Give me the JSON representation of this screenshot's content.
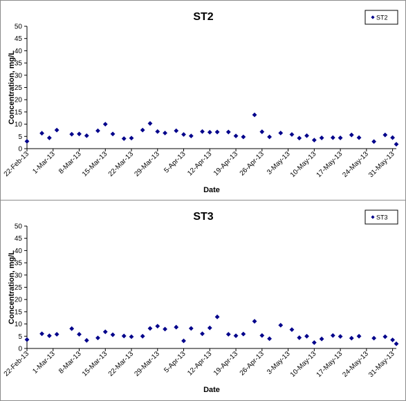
{
  "chart_data": [
    {
      "type": "scatter",
      "title": "ST2",
      "xlabel": "Date",
      "ylabel": "Concentration, mg/L",
      "ylim": [
        0,
        50
      ],
      "yticks": [
        0,
        5,
        10,
        15,
        20,
        25,
        30,
        35,
        40,
        45,
        50
      ],
      "xlim": [
        "2013-02-22",
        "2013-06-01"
      ],
      "xticks": [
        "22-Feb-13",
        "1-Mar-13",
        "8-Mar-13",
        "15-Mar-13",
        "22-Mar-13",
        "29-Mar-13",
        "5-Apr-13",
        "12-Apr-13",
        "19-Apr-13",
        "26-Apr-13",
        "3-May-13",
        "10-May-13",
        "17-May-13",
        "24-May-13",
        "31-May-13"
      ],
      "grid": false,
      "legend": "top-right",
      "marker_color": "#00008b",
      "series": [
        {
          "name": "ST2",
          "points": [
            {
              "x": "2013-02-22",
              "y": 3.0
            },
            {
              "x": "2013-02-26",
              "y": 6.3
            },
            {
              "x": "2013-02-28",
              "y": 4.4
            },
            {
              "x": "2013-03-02",
              "y": 7.6
            },
            {
              "x": "2013-03-06",
              "y": 5.9
            },
            {
              "x": "2013-03-08",
              "y": 6.0
            },
            {
              "x": "2013-03-10",
              "y": 5.3
            },
            {
              "x": "2013-03-13",
              "y": 7.3
            },
            {
              "x": "2013-03-15",
              "y": 10.0
            },
            {
              "x": "2013-03-17",
              "y": 6.0
            },
            {
              "x": "2013-03-20",
              "y": 4.1
            },
            {
              "x": "2013-03-22",
              "y": 4.3
            },
            {
              "x": "2013-03-25",
              "y": 7.6
            },
            {
              "x": "2013-03-27",
              "y": 10.3
            },
            {
              "x": "2013-03-29",
              "y": 7.0
            },
            {
              "x": "2013-03-31",
              "y": 6.4
            },
            {
              "x": "2013-04-03",
              "y": 7.3
            },
            {
              "x": "2013-04-05",
              "y": 5.8
            },
            {
              "x": "2013-04-07",
              "y": 5.2
            },
            {
              "x": "2013-04-10",
              "y": 7.0
            },
            {
              "x": "2013-04-12",
              "y": 6.7
            },
            {
              "x": "2013-04-14",
              "y": 6.8
            },
            {
              "x": "2013-04-17",
              "y": 6.8
            },
            {
              "x": "2013-04-19",
              "y": 5.2
            },
            {
              "x": "2013-04-21",
              "y": 4.8
            },
            {
              "x": "2013-04-24",
              "y": 13.8
            },
            {
              "x": "2013-04-26",
              "y": 6.9
            },
            {
              "x": "2013-04-28",
              "y": 4.8
            },
            {
              "x": "2013-05-01",
              "y": 6.4
            },
            {
              "x": "2013-05-04",
              "y": 5.8
            },
            {
              "x": "2013-05-06",
              "y": 4.3
            },
            {
              "x": "2013-05-08",
              "y": 5.3
            },
            {
              "x": "2013-05-10",
              "y": 3.5
            },
            {
              "x": "2013-05-12",
              "y": 4.4
            },
            {
              "x": "2013-05-15",
              "y": 4.5
            },
            {
              "x": "2013-05-17",
              "y": 4.4
            },
            {
              "x": "2013-05-20",
              "y": 5.6
            },
            {
              "x": "2013-05-22",
              "y": 4.5
            },
            {
              "x": "2013-05-26",
              "y": 2.9
            },
            {
              "x": "2013-05-29",
              "y": 5.6
            },
            {
              "x": "2013-05-31",
              "y": 4.5
            },
            {
              "x": "2013-06-01",
              "y": 1.8
            }
          ]
        }
      ]
    },
    {
      "type": "scatter",
      "title": "ST3",
      "xlabel": "Date",
      "ylabel": "Concentration, mg/L",
      "ylim": [
        0,
        50
      ],
      "yticks": [
        0,
        5,
        10,
        15,
        20,
        25,
        30,
        35,
        40,
        45,
        50
      ],
      "xlim": [
        "2013-02-22",
        "2013-06-01"
      ],
      "xticks": [
        "22-Feb-13",
        "1-Mar-13",
        "8-Mar-13",
        "15-Mar-13",
        "22-Mar-13",
        "29-Mar-13",
        "5-Apr-13",
        "12-Apr-13",
        "19-Apr-13",
        "26-Apr-13",
        "3-May-13",
        "10-May-13",
        "17-May-13",
        "24-May-13",
        "31-May-13"
      ],
      "grid": false,
      "legend": "top-right",
      "marker_color": "#00008b",
      "series": [
        {
          "name": "ST3",
          "points": [
            {
              "x": "2013-02-22",
              "y": 3.6
            },
            {
              "x": "2013-02-26",
              "y": 6.0
            },
            {
              "x": "2013-02-28",
              "y": 5.2
            },
            {
              "x": "2013-03-02",
              "y": 5.8
            },
            {
              "x": "2013-03-06",
              "y": 8.1
            },
            {
              "x": "2013-03-08",
              "y": 5.8
            },
            {
              "x": "2013-03-10",
              "y": 3.3
            },
            {
              "x": "2013-03-13",
              "y": 4.3
            },
            {
              "x": "2013-03-15",
              "y": 6.8
            },
            {
              "x": "2013-03-17",
              "y": 5.6
            },
            {
              "x": "2013-03-20",
              "y": 5.1
            },
            {
              "x": "2013-03-22",
              "y": 4.8
            },
            {
              "x": "2013-03-25",
              "y": 5.0
            },
            {
              "x": "2013-03-27",
              "y": 8.2
            },
            {
              "x": "2013-03-29",
              "y": 9.1
            },
            {
              "x": "2013-03-31",
              "y": 7.9
            },
            {
              "x": "2013-04-03",
              "y": 8.7
            },
            {
              "x": "2013-04-05",
              "y": 3.1
            },
            {
              "x": "2013-04-07",
              "y": 8.2
            },
            {
              "x": "2013-04-10",
              "y": 6.0
            },
            {
              "x": "2013-04-12",
              "y": 8.4
            },
            {
              "x": "2013-04-14",
              "y": 12.9
            },
            {
              "x": "2013-04-17",
              "y": 5.8
            },
            {
              "x": "2013-04-19",
              "y": 5.2
            },
            {
              "x": "2013-04-21",
              "y": 5.9
            },
            {
              "x": "2013-04-24",
              "y": 11.1
            },
            {
              "x": "2013-04-26",
              "y": 5.3
            },
            {
              "x": "2013-04-28",
              "y": 4.0
            },
            {
              "x": "2013-05-01",
              "y": 9.5
            },
            {
              "x": "2013-05-04",
              "y": 7.7
            },
            {
              "x": "2013-05-06",
              "y": 4.4
            },
            {
              "x": "2013-05-08",
              "y": 5.0
            },
            {
              "x": "2013-05-10",
              "y": 2.4
            },
            {
              "x": "2013-05-12",
              "y": 3.9
            },
            {
              "x": "2013-05-15",
              "y": 5.3
            },
            {
              "x": "2013-05-17",
              "y": 4.9
            },
            {
              "x": "2013-05-20",
              "y": 4.2
            },
            {
              "x": "2013-05-22",
              "y": 5.0
            },
            {
              "x": "2013-05-26",
              "y": 4.2
            },
            {
              "x": "2013-05-29",
              "y": 4.8
            },
            {
              "x": "2013-05-31",
              "y": 3.5
            },
            {
              "x": "2013-06-01",
              "y": 1.9
            }
          ]
        }
      ]
    }
  ]
}
